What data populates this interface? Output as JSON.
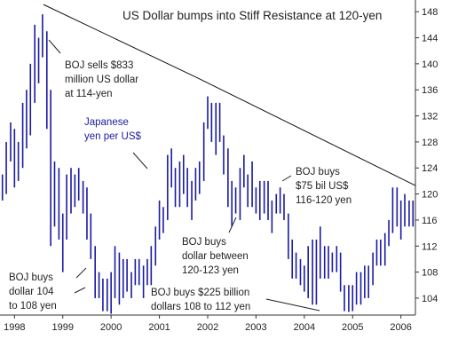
{
  "chart_data": {
    "type": "range-bar",
    "title": "US Dollar bumps into Stiff Resistance at 120-yen",
    "annotations": [
      [
        "BOJ sells $833",
        "million US dollar",
        "at 114-yen"
      ],
      [
        "Japanese",
        "yen per US$"
      ],
      [
        "BOJ buys",
        "$75 bil US$",
        "116-120 yen"
      ],
      [
        "BOJ buys",
        "dollar between",
        "120-123 yen"
      ],
      [
        "BOJ buys",
        "dollar 104",
        "to 108 yen"
      ],
      [
        "BOJ buys $225 billion",
        "dollars 108 to 112 yen"
      ]
    ],
    "annotation_colors": [
      "#222222",
      "#1a1aa0",
      "#222222",
      "#222222",
      "#222222",
      "#222222"
    ],
    "color": "#1a1aa0",
    "x": [
      1997.75,
      1997.83,
      1997.92,
      1998.0,
      1998.08,
      1998.17,
      1998.25,
      1998.33,
      1998.42,
      1998.5,
      1998.58,
      1998.67,
      1998.75,
      1998.83,
      1998.92,
      1999.0,
      1999.08,
      1999.17,
      1999.25,
      1999.33,
      1999.42,
      1999.5,
      1999.58,
      1999.67,
      1999.75,
      1999.83,
      1999.92,
      2000.0,
      2000.08,
      2000.17,
      2000.25,
      2000.33,
      2000.42,
      2000.5,
      2000.58,
      2000.67,
      2000.75,
      2000.83,
      2000.92,
      2001.0,
      2001.08,
      2001.17,
      2001.25,
      2001.33,
      2001.42,
      2001.5,
      2001.58,
      2001.67,
      2001.75,
      2001.83,
      2001.92,
      2002.0,
      2002.08,
      2002.17,
      2002.25,
      2002.33,
      2002.42,
      2002.5,
      2002.58,
      2002.67,
      2002.75,
      2002.83,
      2002.92,
      2003.0,
      2003.08,
      2003.17,
      2003.25,
      2003.33,
      2003.42,
      2003.5,
      2003.58,
      2003.67,
      2003.75,
      2003.83,
      2003.92,
      2004.0,
      2004.08,
      2004.17,
      2004.25,
      2004.33,
      2004.42,
      2004.5,
      2004.58,
      2004.67,
      2004.75,
      2004.83,
      2004.92,
      2005.0,
      2005.08,
      2005.17,
      2005.25,
      2005.33,
      2005.42,
      2005.5,
      2005.58,
      2005.67,
      2005.75,
      2005.83,
      2005.92,
      2006.0,
      2006.08,
      2006.17,
      2006.25
    ],
    "low": [
      119,
      120,
      125,
      121,
      122,
      124,
      127,
      129,
      134,
      137,
      141,
      130,
      112,
      115,
      113,
      108,
      113,
      117,
      118,
      119,
      117,
      113,
      110,
      104,
      104,
      102,
      102,
      101.6,
      104,
      103,
      104,
      105,
      104,
      106,
      106,
      104,
      106,
      106,
      109,
      113,
      114,
      116,
      121,
      118,
      118,
      120,
      118,
      116,
      119,
      120,
      122,
      130,
      128,
      126,
      128,
      123,
      118,
      115,
      117,
      116,
      121,
      118,
      118,
      117,
      116,
      117,
      116,
      114,
      117,
      117,
      116,
      110,
      107,
      107,
      106,
      105,
      104,
      103,
      103,
      107,
      107,
      107,
      108,
      108,
      105,
      102,
      101.9,
      102,
      103,
      103,
      104,
      104,
      106,
      109,
      109,
      109,
      112,
      114,
      115,
      113,
      115,
      115,
      115
    ],
    "high": [
      123,
      128,
      131,
      130,
      128,
      134,
      136,
      140,
      146,
      144,
      147.6,
      145,
      136,
      125,
      124,
      117,
      123,
      124,
      123,
      124,
      122,
      121,
      117,
      112,
      108,
      107,
      107,
      108,
      112,
      111,
      110,
      110,
      108,
      110,
      110,
      109,
      110,
      112,
      115,
      119,
      118,
      126,
      127,
      124,
      125,
      126,
      124,
      122,
      124,
      125,
      131,
      135,
      134,
      134,
      134,
      129,
      127,
      122,
      121,
      124,
      126,
      123,
      125,
      121,
      122,
      122,
      122,
      119,
      120,
      121,
      120,
      117,
      113,
      111,
      110,
      109,
      112,
      113,
      113,
      115,
      112,
      112,
      111,
      112,
      111,
      106,
      106,
      106,
      108,
      108,
      109,
      109,
      111,
      113,
      113,
      114,
      116,
      121,
      121,
      119,
      120,
      119,
      119
    ],
    "trendline": {
      "x": [
        1998.6,
        2001.8,
        2006.3
      ],
      "y": [
        149.1,
        137.8,
        121.3
      ]
    },
    "xlim": [
      1997.7,
      2006.3
    ],
    "xticks": [
      1998,
      1999,
      2000,
      2001,
      2002,
      2003,
      2004,
      2005,
      2006
    ],
    "ylim": [
      101.4,
      149.8
    ],
    "yticks": [
      104,
      108,
      112,
      116,
      120,
      124,
      128,
      132,
      136,
      140,
      144,
      148
    ]
  }
}
